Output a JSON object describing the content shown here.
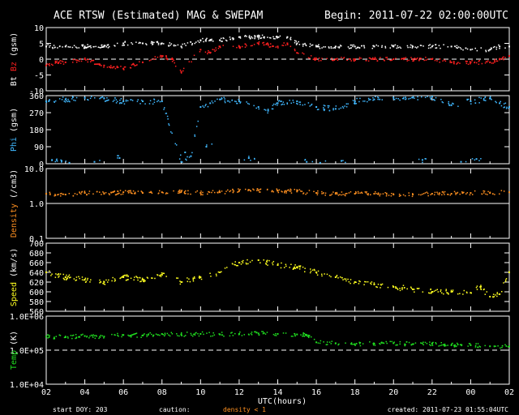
{
  "header": {
    "title": "ACE RTSW (Estimated) MAG & SWEPAM",
    "begin": "Begin: 2011-07-22 02:00:00UTC"
  },
  "footer": {
    "start_doy": "start DOY: 203",
    "caution": "caution:",
    "density_note": "density < 1",
    "created": "created: 2011-07-23 01:55:04UTC"
  },
  "colors": {
    "bt": "#ffffff",
    "bz": "#ff2020",
    "phi": "#40b8ff",
    "density": "#ff9020",
    "speed": "#ffff20",
    "temp": "#20e020"
  },
  "chart_data": [
    {
      "type": "scatter",
      "panel": "mag",
      "ylabel_parts": [
        "Bt",
        "Bz",
        "(gsm)"
      ],
      "ylim": [
        -10,
        10
      ],
      "yticks": [
        "10",
        "5",
        "0",
        "-5",
        "-10"
      ],
      "ytick_values": [
        10,
        5,
        0,
        -5,
        -10
      ],
      "reference_line": 0,
      "series": [
        {
          "name": "Bt",
          "x": [
            0,
            1,
            2,
            3,
            4,
            5,
            6,
            7,
            8,
            8.5,
            9,
            10,
            11,
            12,
            12.5,
            13,
            14,
            15,
            16,
            17,
            18,
            19,
            20,
            21,
            22,
            23,
            23.5,
            24
          ],
          "y": [
            4,
            4,
            4,
            4,
            5,
            5,
            5,
            4,
            6,
            6,
            6,
            7,
            7,
            7,
            7,
            5,
            4,
            4,
            4,
            4,
            4,
            4,
            4,
            4,
            3,
            3,
            4,
            4
          ]
        },
        {
          "name": "Bz",
          "x": [
            0,
            0.5,
            1,
            2,
            3,
            4,
            5,
            6,
            6.5,
            7,
            8,
            8.5,
            9,
            10,
            11,
            12,
            12.5,
            13,
            14,
            15,
            16,
            17,
            18,
            19,
            20,
            21,
            22,
            23,
            23.5,
            24
          ],
          "y": [
            -2,
            -1,
            -1,
            0,
            -2,
            -3,
            -1,
            1,
            0,
            -4,
            3,
            2,
            4,
            4,
            5,
            4,
            5,
            2,
            0,
            0,
            0,
            0,
            0,
            0,
            0,
            -1,
            -1,
            -1,
            0,
            1
          ]
        }
      ]
    },
    {
      "type": "scatter",
      "panel": "phi",
      "ylabel_parts": [
        "Phi",
        "(gsm)"
      ],
      "ylim": [
        0,
        360
      ],
      "yticks": [
        "360",
        "270",
        "180",
        "90",
        "0"
      ],
      "ytick_values": [
        360,
        270,
        180,
        90,
        0
      ],
      "series": [
        {
          "name": "Phi",
          "x": [
            0,
            1,
            2,
            3,
            4,
            5,
            6,
            7,
            7.5,
            8,
            8.5,
            9,
            10,
            11,
            11.5,
            12,
            13,
            14,
            15,
            16,
            17,
            18,
            19,
            20,
            21,
            22,
            23,
            23.5,
            24
          ],
          "y": [
            330,
            340,
            350,
            345,
            330,
            330,
            330,
            10,
            40,
            300,
            320,
            340,
            330,
            300,
            280,
            320,
            330,
            300,
            290,
            330,
            340,
            350,
            350,
            355,
            310,
            330,
            345,
            320,
            300
          ]
        },
        {
          "name": "Phi-low",
          "x": [
            0.3,
            0.8,
            1.2,
            2.5,
            3.8,
            7.2,
            8.3,
            10.5,
            13.5,
            14.2,
            15.3,
            19.5,
            21.5,
            22.3
          ],
          "y": [
            20,
            15,
            5,
            10,
            30,
            60,
            90,
            30,
            10,
            5,
            15,
            20,
            10,
            25
          ]
        }
      ]
    },
    {
      "type": "scatter",
      "panel": "density",
      "ylabel_parts": [
        "Density",
        "(/cm3)"
      ],
      "scale": "log",
      "ylim": [
        0.1,
        10
      ],
      "yticks": [
        "10.0",
        "1.0",
        "0.1"
      ],
      "ytick_values": [
        10,
        1,
        0.1
      ],
      "reference_line": 1,
      "series": [
        {
          "name": "Density",
          "x": [
            0,
            1,
            2,
            3,
            4,
            5,
            6,
            7,
            8,
            9,
            10,
            11,
            12,
            13,
            14,
            15,
            16,
            17,
            18,
            19,
            20,
            21,
            22,
            23,
            24
          ],
          "y": [
            1.9,
            1.8,
            2.0,
            1.9,
            2.1,
            2.0,
            2.1,
            2.2,
            2.0,
            2.1,
            2.3,
            2.4,
            2.3,
            2.2,
            2.0,
            1.9,
            1.9,
            1.9,
            1.8,
            1.8,
            1.9,
            1.9,
            2.0,
            2.0,
            2.1
          ]
        }
      ]
    },
    {
      "type": "scatter",
      "panel": "speed",
      "ylabel_parts": [
        "Speed",
        "(km/s)"
      ],
      "ylim": [
        560,
        700
      ],
      "yticks": [
        "700",
        "680",
        "660",
        "640",
        "620",
        "600",
        "580",
        "560"
      ],
      "ytick_values": [
        700,
        680,
        660,
        640,
        620,
        600,
        580,
        560
      ],
      "series": [
        {
          "name": "Speed",
          "x": [
            0,
            1,
            2,
            3,
            4,
            5,
            6,
            7,
            8,
            9,
            10,
            11,
            12,
            13,
            14,
            15,
            16,
            17,
            18,
            19,
            20,
            21,
            22,
            22.5,
            23,
            23.5,
            24
          ],
          "y": [
            640,
            630,
            625,
            620,
            630,
            625,
            635,
            620,
            630,
            640,
            660,
            665,
            655,
            650,
            640,
            630,
            620,
            615,
            610,
            605,
            600,
            600,
            598,
            610,
            590,
            595,
            640
          ]
        }
      ]
    },
    {
      "type": "scatter",
      "panel": "temp",
      "ylabel_parts": [
        "Temp",
        "(K)"
      ],
      "scale": "log",
      "ylim": [
        10000,
        1000000
      ],
      "yticks": [
        "1.0E+06",
        "1.0E+05",
        "1.0E+04"
      ],
      "ytick_values": [
        1000000,
        100000,
        10000
      ],
      "reference_line": 100000,
      "series": [
        {
          "name": "Temp",
          "x": [
            0,
            1,
            2,
            3,
            4,
            5,
            6,
            7,
            8,
            9,
            10,
            11,
            12,
            13,
            13.5,
            14,
            15,
            16,
            17,
            18,
            19,
            20,
            21,
            22,
            23,
            24
          ],
          "y": [
            250000,
            240000,
            260000,
            250000,
            280000,
            270000,
            300000,
            290000,
            300000,
            290000,
            300000,
            310000,
            300000,
            290000,
            280000,
            170000,
            160000,
            150000,
            155000,
            160000,
            150000,
            155000,
            140000,
            140000,
            130000,
            130000
          ]
        }
      ]
    }
  ],
  "x_axis": {
    "xlabel": "UTC(hours)",
    "range": [
      0,
      24
    ],
    "tick_labels": [
      "02",
      "04",
      "06",
      "08",
      "10",
      "12",
      "14",
      "16",
      "18",
      "20",
      "22",
      "00",
      "02"
    ]
  }
}
